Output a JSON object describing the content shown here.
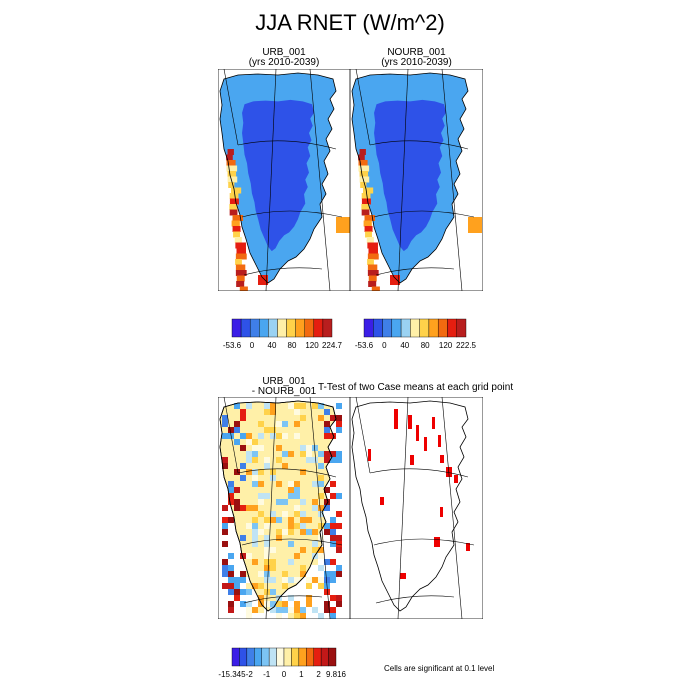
{
  "title": "JJA RNET (W/m^2)",
  "panels": {
    "urb": {
      "name": "URB_001",
      "years": "(yrs 2010-2039)"
    },
    "nourb": {
      "name": "NOURB_001",
      "years": "(yrs 2010-2039)"
    },
    "diff": {
      "line1": "URB_001",
      "line2": "- NOURB_001"
    },
    "ttest": {
      "title": "T-Test of two Case means at each grid point"
    }
  },
  "colorbars": {
    "urb": {
      "colors": [
        "#3b1ee6",
        "#2e52e8",
        "#3f7fe8",
        "#4aa6f0",
        "#9ad2f2",
        "#fff0a8",
        "#ffd24a",
        "#ffa11e",
        "#f26a10",
        "#e51e10",
        "#b81e1e"
      ],
      "labels": [
        "-53.6",
        "0",
        "40",
        "80",
        "120",
        "224.7"
      ]
    },
    "nourb": {
      "colors": [
        "#3b1ee6",
        "#2e52e8",
        "#3f7fe8",
        "#4aa6f0",
        "#9ad2f2",
        "#fff0a8",
        "#ffd24a",
        "#ffa11e",
        "#f26a10",
        "#e51e10",
        "#b81e1e"
      ],
      "labels": [
        "-53.6",
        "0",
        "40",
        "80",
        "120",
        "222.5"
      ]
    },
    "diff": {
      "colors": [
        "#3b1ee6",
        "#2e52e8",
        "#3f7fe8",
        "#4aa6f0",
        "#7cc4f4",
        "#bfe3f4",
        "#fffbe0",
        "#fff0a8",
        "#ffd24a",
        "#ffa11e",
        "#f26a10",
        "#e51e10",
        "#c21818",
        "#9a1010"
      ],
      "labels": [
        "-15.345",
        "-2",
        "-1",
        "0",
        "1",
        "2",
        "9.816"
      ]
    }
  },
  "significance_note": "Cells are significant at 0.1 level",
  "map_colors": {
    "ocean": "#ffffff",
    "coast": "#000000",
    "sig_cell": "#ee0000"
  }
}
